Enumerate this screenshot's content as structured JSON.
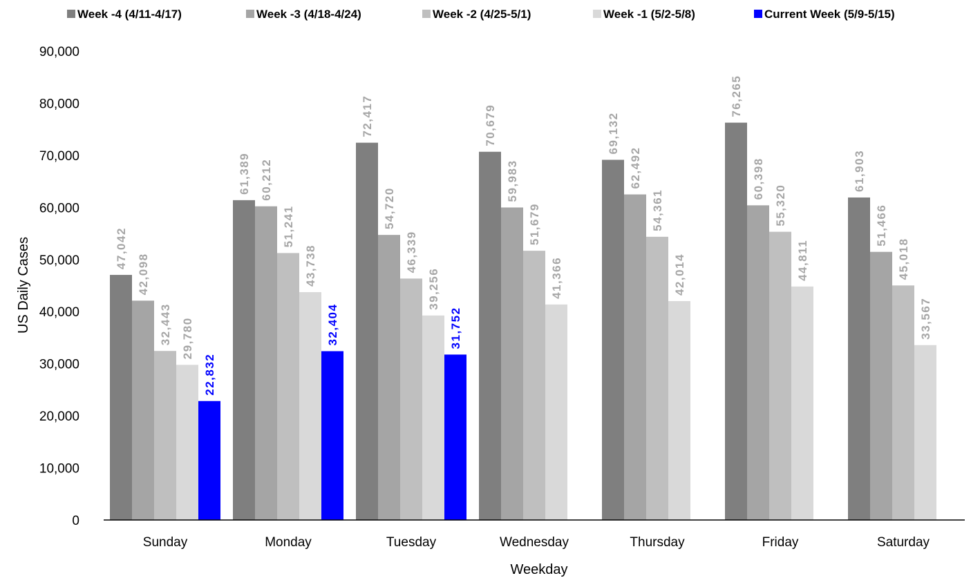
{
  "chart_data": {
    "type": "bar",
    "title": "",
    "xlabel": "Weekday",
    "ylabel": "US Daily Cases",
    "ylim": [
      0,
      90000
    ],
    "yticks": [
      0,
      10000,
      20000,
      30000,
      40000,
      50000,
      60000,
      70000,
      80000,
      90000
    ],
    "ytick_labels": [
      "0",
      "10,000",
      "20,000",
      "30,000",
      "40,000",
      "50,000",
      "60,000",
      "70,000",
      "80,000",
      "90,000"
    ],
    "grid": false,
    "legend_position": "top",
    "categories": [
      "Sunday",
      "Monday",
      "Tuesday",
      "Wednesday",
      "Thursday",
      "Friday",
      "Saturday"
    ],
    "series": [
      {
        "name": "Week -4 (4/11-4/17)",
        "color": "#7f7f7f",
        "label_color": "#a6a6a6",
        "values": [
          47042,
          61389,
          72417,
          70679,
          69132,
          76265,
          61903
        ],
        "labels": [
          "47,042",
          "61,389",
          "72,417",
          "70,679",
          "69,132",
          "76,265",
          "61,903"
        ]
      },
      {
        "name": "Week -3 (4/18-4/24)",
        "color": "#a5a5a5",
        "label_color": "#a6a6a6",
        "values": [
          42098,
          60212,
          54720,
          59983,
          62492,
          60398,
          51466
        ],
        "labels": [
          "42,098",
          "60,212",
          "54,720",
          "59,983",
          "62,492",
          "60,398",
          "51,466"
        ]
      },
      {
        "name": "Week -2 (4/25-5/1)",
        "color": "#bfbfbf",
        "label_color": "#a6a6a6",
        "values": [
          32443,
          51241,
          46339,
          51679,
          54361,
          55320,
          45018
        ],
        "labels": [
          "32,443",
          "51,241",
          "46,339",
          "51,679",
          "54,361",
          "55,320",
          "45,018"
        ]
      },
      {
        "name": "Week -1 (5/2-5/8)",
        "color": "#d9d9d9",
        "label_color": "#a6a6a6",
        "values": [
          29780,
          43738,
          39256,
          41366,
          42014,
          44811,
          33567
        ],
        "labels": [
          "29,780",
          "43,738",
          "39,256",
          "41,366",
          "42,014",
          "44,811",
          "33,567"
        ]
      },
      {
        "name": "Current Week (5/9-5/15)",
        "color": "#0000ff",
        "label_color": "#0000ff",
        "values": [
          22832,
          32404,
          31752,
          null,
          null,
          null,
          null
        ],
        "labels": [
          "22,832",
          "32,404",
          "31,752",
          "",
          "",
          "",
          ""
        ]
      }
    ]
  }
}
